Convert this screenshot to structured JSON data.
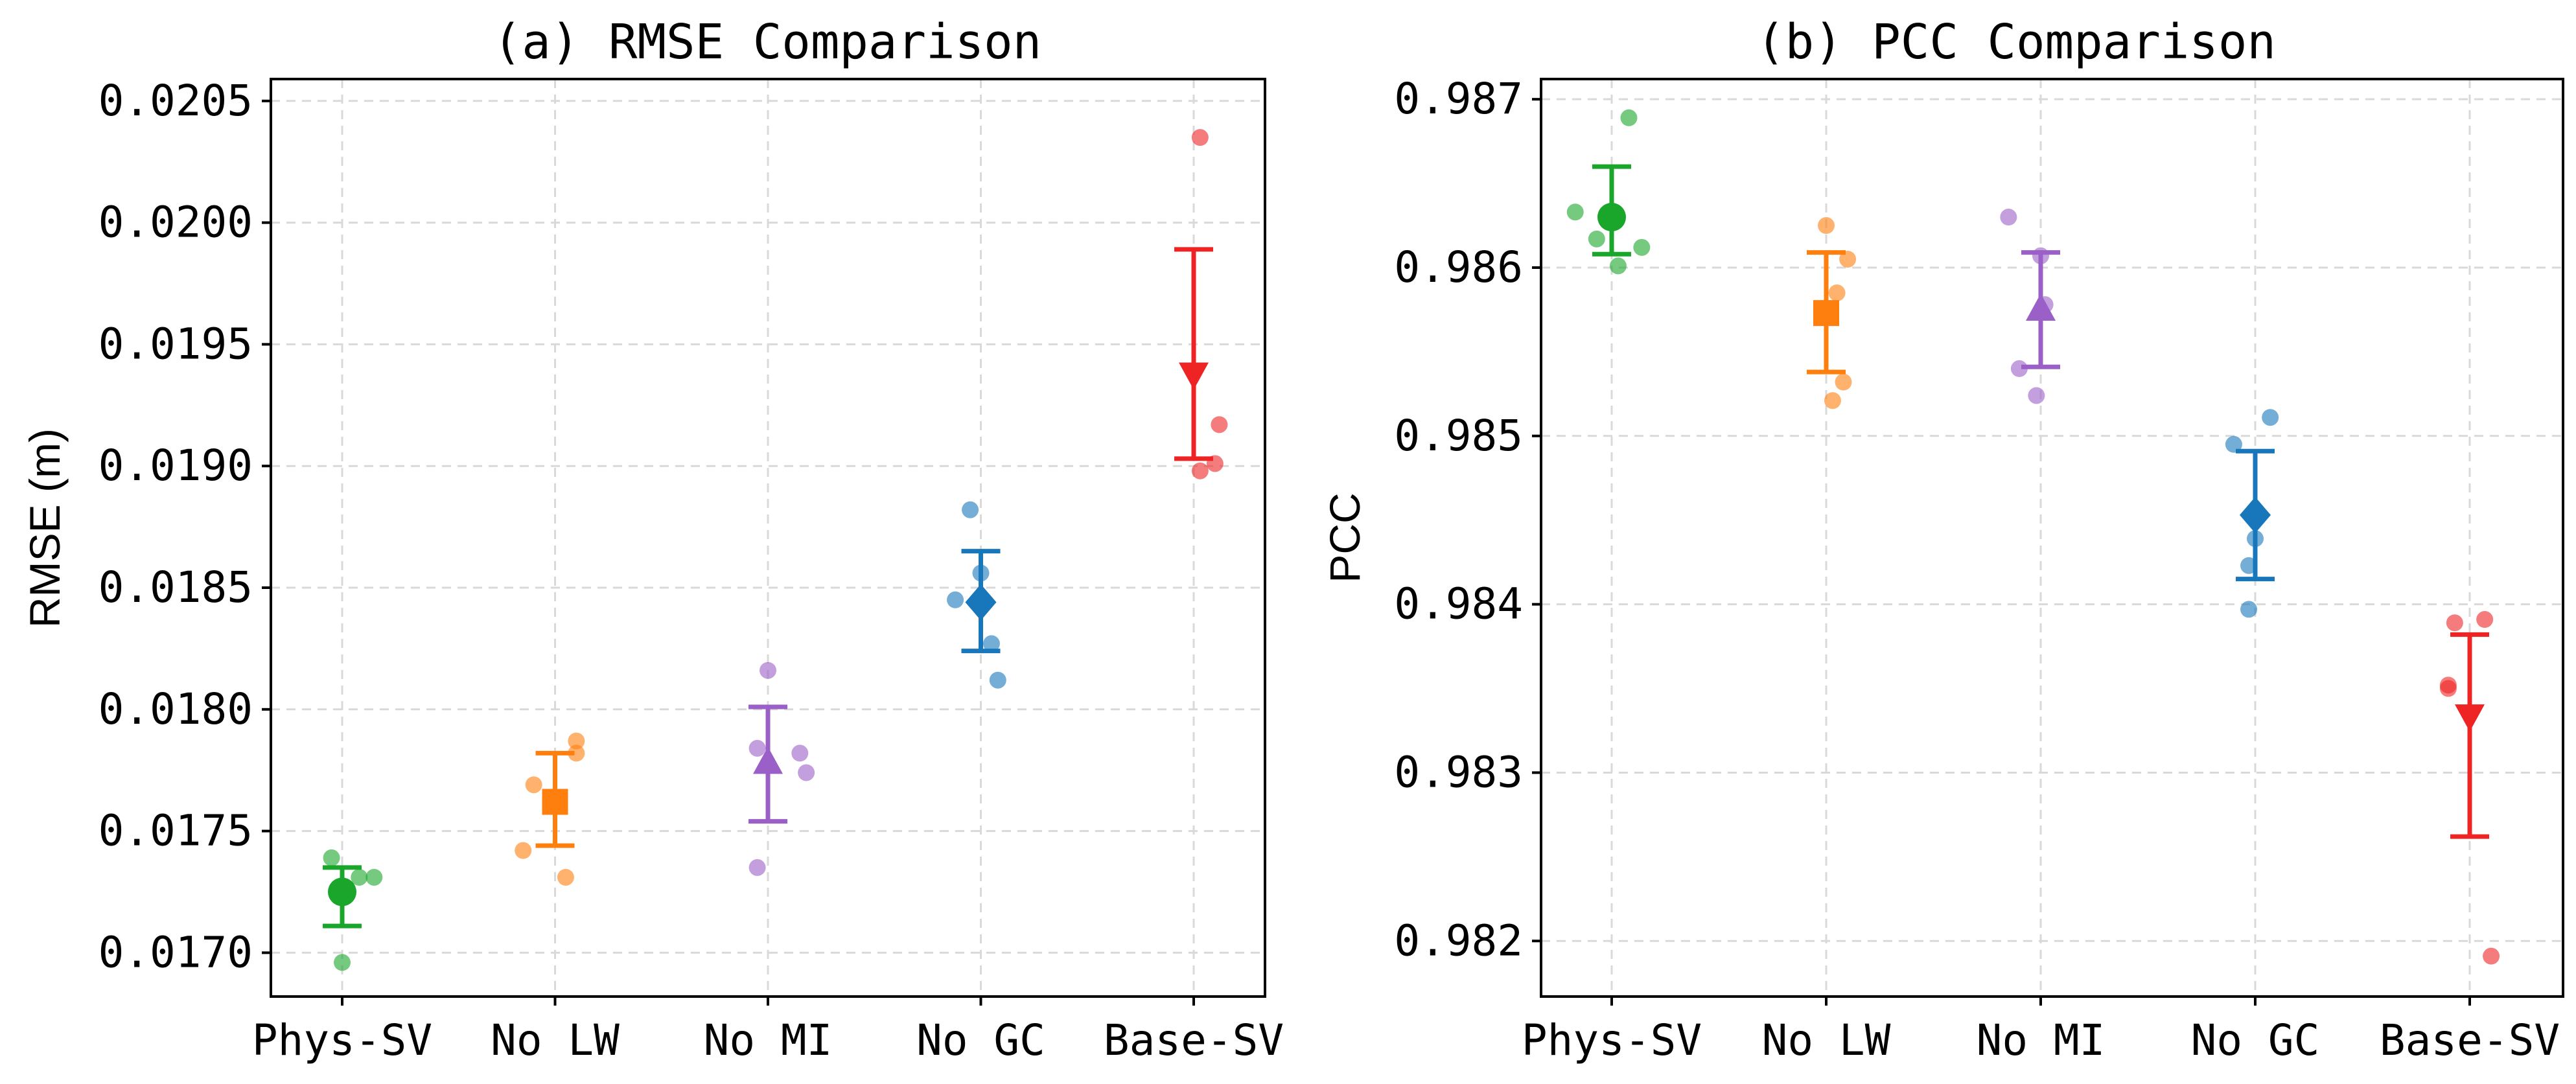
{
  "chart_data": [
    {
      "type": "scatter",
      "title": "(a) RMSE Comparison",
      "xlabel": "",
      "ylabel": "RMSE (m)",
      "categories": [
        "Phys-SV",
        "No LW",
        "No MI",
        "No GC",
        "Base-SV"
      ],
      "ylim": [
        0.01682,
        0.02059
      ],
      "yticks": [
        0.017,
        0.0175,
        0.018,
        0.0185,
        0.019,
        0.0195,
        0.02,
        0.0205
      ],
      "ytick_labels": [
        "0.0170",
        "0.0175",
        "0.0180",
        "0.0185",
        "0.0190",
        "0.0195",
        "0.0200",
        "0.0205"
      ],
      "grid": true,
      "series": [
        {
          "name": "Phys-SV",
          "color": "#1aa62a",
          "marker": "circle",
          "mean": 0.01725,
          "err_low": 0.01711,
          "err_high": 0.01735,
          "points": [
            {
              "dx": -0.05,
              "y": 0.01739
            },
            {
              "dx": 0.08,
              "y": 0.01731
            },
            {
              "dx": 0.15,
              "y": 0.01731
            },
            {
              "dx": 0.0,
              "y": 0.01696
            }
          ]
        },
        {
          "name": "No LW",
          "color": "#ff7f0e",
          "marker": "square",
          "mean": 0.01762,
          "err_low": 0.01744,
          "err_high": 0.01782,
          "points": [
            {
              "dx": -0.1,
              "y": 0.01769
            },
            {
              "dx": 0.1,
              "y": 0.01787
            },
            {
              "dx": 0.1,
              "y": 0.01782
            },
            {
              "dx": -0.15,
              "y": 0.01742
            },
            {
              "dx": 0.05,
              "y": 0.01731
            }
          ]
        },
        {
          "name": "No MI",
          "color": "#9b5fc8",
          "marker": "triangle-up",
          "mean": 0.01778,
          "err_low": 0.01754,
          "err_high": 0.01801,
          "points": [
            {
              "dx": 0.0,
              "y": 0.01816
            },
            {
              "dx": -0.05,
              "y": 0.01784
            },
            {
              "dx": 0.15,
              "y": 0.01782
            },
            {
              "dx": 0.18,
              "y": 0.01774
            },
            {
              "dx": -0.05,
              "y": 0.01735
            }
          ]
        },
        {
          "name": "No GC",
          "color": "#1877bb",
          "marker": "diamond",
          "mean": 0.01844,
          "err_low": 0.01824,
          "err_high": 0.01865,
          "points": [
            {
              "dx": -0.05,
              "y": 0.01882
            },
            {
              "dx": 0.0,
              "y": 0.01856
            },
            {
              "dx": -0.12,
              "y": 0.01845
            },
            {
              "dx": 0.05,
              "y": 0.01827
            },
            {
              "dx": 0.08,
              "y": 0.01812
            }
          ]
        },
        {
          "name": "Base-SV",
          "color": "#ee2424",
          "marker": "triangle-down",
          "mean": 0.01938,
          "err_low": 0.01903,
          "err_high": 0.01989,
          "points": [
            {
              "dx": 0.03,
              "y": 0.02035
            },
            {
              "dx": 0.12,
              "y": 0.01917
            },
            {
              "dx": 0.1,
              "y": 0.01901
            },
            {
              "dx": 0.03,
              "y": 0.01898
            }
          ]
        }
      ]
    },
    {
      "type": "scatter",
      "title": "(b) PCC Comparison",
      "xlabel": "",
      "ylabel": "PCC",
      "categories": [
        "Phys-SV",
        "No LW",
        "No MI",
        "No GC",
        "Base-SV"
      ],
      "ylim": [
        0.98167,
        0.98712
      ],
      "yticks": [
        0.982,
        0.983,
        0.984,
        0.985,
        0.986,
        0.987
      ],
      "ytick_labels": [
        "0.982",
        "0.983",
        "0.984",
        "0.985",
        "0.986",
        "0.987"
      ],
      "grid": true,
      "series": [
        {
          "name": "Phys-SV",
          "color": "#1aa62a",
          "marker": "circle",
          "mean": 0.9863,
          "err_low": 0.98608,
          "err_high": 0.9866,
          "points": [
            {
              "dx": 0.08,
              "y": 0.98689
            },
            {
              "dx": -0.17,
              "y": 0.98633
            },
            {
              "dx": -0.07,
              "y": 0.98617
            },
            {
              "dx": 0.14,
              "y": 0.98612
            },
            {
              "dx": 0.03,
              "y": 0.98601
            }
          ]
        },
        {
          "name": "No LW",
          "color": "#ff7f0e",
          "marker": "square",
          "mean": 0.98573,
          "err_low": 0.98538,
          "err_high": 0.98609,
          "points": [
            {
              "dx": 0.0,
              "y": 0.98625
            },
            {
              "dx": 0.1,
              "y": 0.98605
            },
            {
              "dx": 0.05,
              "y": 0.98585
            },
            {
              "dx": 0.08,
              "y": 0.98532
            },
            {
              "dx": 0.03,
              "y": 0.98521
            }
          ]
        },
        {
          "name": "No MI",
          "color": "#9b5fc8",
          "marker": "triangle-up",
          "mean": 0.98575,
          "err_low": 0.98541,
          "err_high": 0.98609,
          "points": [
            {
              "dx": -0.15,
              "y": 0.9863
            },
            {
              "dx": 0.0,
              "y": 0.98607
            },
            {
              "dx": 0.02,
              "y": 0.98578
            },
            {
              "dx": -0.1,
              "y": 0.9854
            },
            {
              "dx": -0.02,
              "y": 0.98524
            }
          ]
        },
        {
          "name": "No GC",
          "color": "#1877bb",
          "marker": "diamond",
          "mean": 0.98453,
          "err_low": 0.98415,
          "err_high": 0.98491,
          "points": [
            {
              "dx": 0.07,
              "y": 0.98511
            },
            {
              "dx": -0.1,
              "y": 0.98495
            },
            {
              "dx": 0.0,
              "y": 0.98439
            },
            {
              "dx": -0.03,
              "y": 0.98423
            },
            {
              "dx": -0.03,
              "y": 0.98397
            }
          ]
        },
        {
          "name": "Base-SV",
          "color": "#ee2424",
          "marker": "triangle-down",
          "mean": 0.98334,
          "err_low": 0.98262,
          "err_high": 0.98382,
          "points": [
            {
              "dx": -0.07,
              "y": 0.98389
            },
            {
              "dx": 0.07,
              "y": 0.98391
            },
            {
              "dx": -0.1,
              "y": 0.98352
            },
            {
              "dx": -0.1,
              "y": 0.9835
            },
            {
              "dx": 0.1,
              "y": 0.98191
            }
          ]
        }
      ]
    }
  ]
}
